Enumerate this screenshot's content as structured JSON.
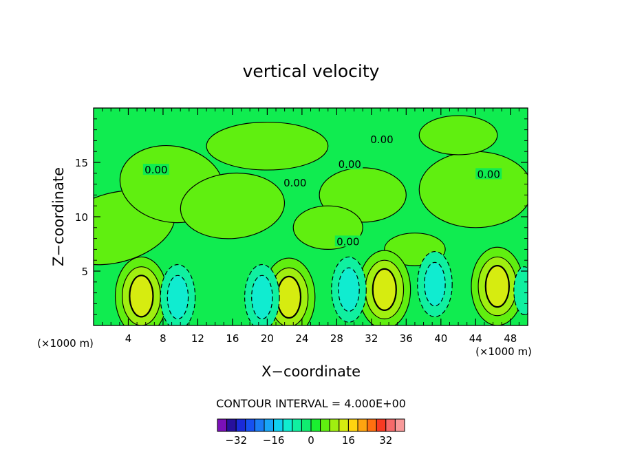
{
  "chart_data": {
    "type": "contour",
    "title": "vertical velocity",
    "xlabel": "X−coordinate",
    "ylabel": "Z−coordinate",
    "x_unit_label": "(×1000 m)",
    "y_unit_label": "(×1000 m)",
    "xlim": [
      0,
      50
    ],
    "ylim": [
      0,
      20
    ],
    "x_ticks": [
      4,
      8,
      12,
      16,
      20,
      24,
      28,
      32,
      36,
      40,
      44,
      48
    ],
    "y_ticks": [
      5,
      10,
      15
    ],
    "contour_interval_label": "CONTOUR INTERVAL = 4.000E+00",
    "contour_labels": [
      {
        "text": "0.00",
        "x": 7.2,
        "z": 14.3
      },
      {
        "text": "0.00",
        "x": 23.2,
        "z": 13.1
      },
      {
        "text": "0.00",
        "x": 33.2,
        "z": 17.1
      },
      {
        "text": "0.00",
        "x": 45.5,
        "z": 13.9
      },
      {
        "text": "0.00",
        "x": 29.5,
        "z": 14.8
      },
      {
        "text": "0.00",
        "x": 29.3,
        "z": 7.7
      }
    ],
    "features": [
      {
        "type": "updraft",
        "x": 5.5,
        "z": 2.7,
        "max": 12
      },
      {
        "type": "updraft",
        "x": 22.5,
        "z": 2.6,
        "max": 12
      },
      {
        "type": "updraft",
        "x": 33.5,
        "z": 3.3,
        "max": 12
      },
      {
        "type": "updraft",
        "x": 46.5,
        "z": 3.6,
        "max": 12
      },
      {
        "type": "downdraft",
        "x": 9.7,
        "z": 2.6,
        "min": -8
      },
      {
        "type": "downdraft",
        "x": 19.4,
        "z": 2.6,
        "min": -8
      },
      {
        "type": "downdraft",
        "x": 29.4,
        "z": 3.3,
        "min": -8
      },
      {
        "type": "downdraft",
        "x": 39.3,
        "z": 3.8,
        "min": -8
      },
      {
        "type": "downdraft",
        "x": 49.6,
        "z": 3.2,
        "min": -4
      }
    ],
    "colorbar": {
      "levels": [
        -36,
        -32,
        -28,
        -24,
        -20,
        -16,
        -12,
        -8,
        -4,
        0,
        4,
        8,
        12,
        16,
        20,
        24,
        28,
        32,
        36
      ],
      "colors": [
        "#7b10b8",
        "#27109c",
        "#1a2ad8",
        "#1650f0",
        "#1a7cf5",
        "#18a6f7",
        "#10d0f0",
        "#10ecd0",
        "#10f0a0",
        "#10ec70",
        "#1aef30",
        "#60ef10",
        "#a0ef10",
        "#d6ec10",
        "#ffd410",
        "#ffa410",
        "#ff7010",
        "#f83a22",
        "#f66a6a",
        "#f89a9a"
      ],
      "tick_labels": [
        "−32",
        "−16",
        "0",
        "16",
        "32"
      ],
      "tick_values": [
        -32,
        -16,
        0,
        16,
        32
      ]
    }
  },
  "colors": {
    "field_zero": "#10ec50",
    "positive_4": "#60ef10",
    "positive_8": "#a0ef10",
    "positive_12": "#d6ec10",
    "negative_4": "#10f0a0",
    "negative_8": "#10ecd0"
  }
}
